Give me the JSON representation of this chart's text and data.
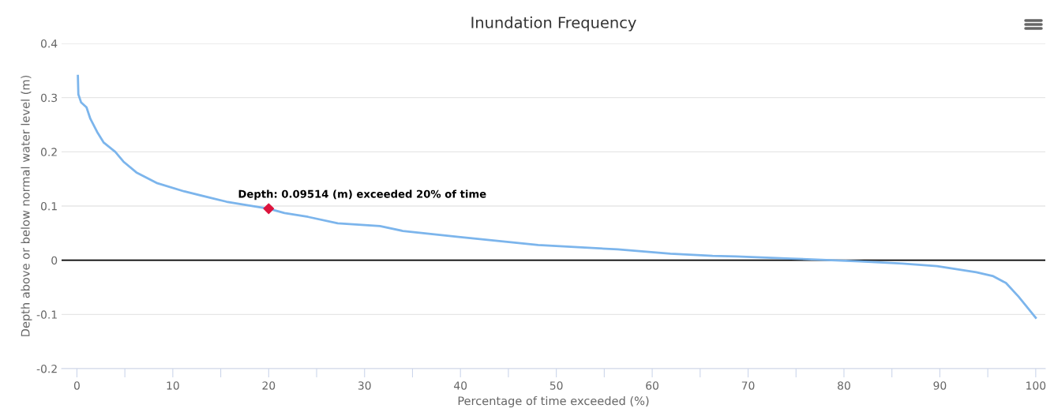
{
  "chart_data": {
    "type": "line",
    "title": "Inundation Frequency",
    "xlabel": "Percentage of time exceeded (%)",
    "ylabel": "Depth above or below normal water level (m)",
    "xlim": [
      -1.6,
      101
    ],
    "xticks": [
      0,
      {
        "value": 5,
        "label": null
      },
      10,
      {
        "value": 15,
        "label": null
      },
      20,
      {
        "value": 25,
        "label": null
      },
      30,
      {
        "value": 35,
        "label": null
      },
      40,
      {
        "value": 45,
        "label": null
      },
      50,
      {
        "value": 55,
        "label": null
      },
      60,
      {
        "value": 65,
        "label": null
      },
      70,
      {
        "value": 75,
        "label": null
      },
      80,
      {
        "value": 85,
        "label": null
      },
      90,
      {
        "value": 95,
        "label": null
      },
      100
    ],
    "ylim": [
      -0.2,
      0.4
    ],
    "yticks": [
      -0.2,
      -0.1,
      0,
      0.1,
      0.2,
      0.3,
      0.4
    ],
    "grid": "y",
    "legend": false,
    "series": [
      {
        "color": "#7cb5ec",
        "x": [
          0.1,
          0.15,
          0.44,
          1.0,
          1.4,
          2.1,
          2.8,
          4.0,
          4.85,
          6.2,
          8.4,
          11.2,
          15.6,
          18.6,
          20,
          21.65,
          24.1,
          27.2,
          31.6,
          34.0,
          39.8,
          48.1,
          56.4,
          61.9,
          66.3,
          68.8,
          74.5,
          81.7,
          86.1,
          89.7,
          93.8,
          95.5,
          96.9,
          98.2,
          100
        ],
        "values": [
          0.34,
          0.306,
          0.291,
          0.282,
          0.261,
          0.237,
          0.217,
          0.2,
          0.182,
          0.162,
          0.142,
          0.127,
          0.108,
          0.099,
          0.095,
          0.087,
          0.08,
          0.068,
          0.063,
          0.054,
          0.043,
          0.028,
          0.02,
          0.012,
          0.008,
          0.007,
          0.003,
          -0.002,
          -0.006,
          -0.011,
          -0.022,
          -0.029,
          -0.042,
          -0.067,
          -0.106
        ]
      },
      {
        "type": "scatter",
        "color": "#dc143c",
        "marker": "diamond",
        "x": [
          20
        ],
        "values": [
          0.09514
        ]
      }
    ],
    "ref_lines": [
      {
        "axis": "y",
        "value": 0,
        "color": "#000000"
      }
    ],
    "annotations": [
      {
        "text": "Depth: 0.09514 (m) exceeded 20% of time",
        "x": 20,
        "y": 0.09514
      }
    ]
  }
}
